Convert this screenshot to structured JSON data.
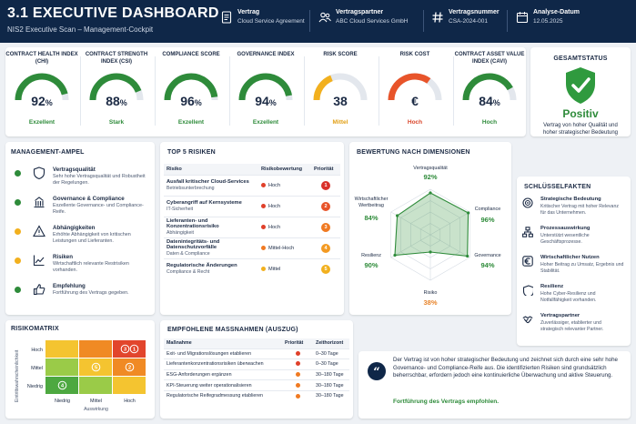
{
  "header": {
    "title": "3.1  EXECUTIVE DASHBOARD",
    "subtitle": "NIS2 Executive Scan – Management-Cockpit",
    "meta": [
      {
        "label": "Vertrag",
        "value": "Cloud Service Agreement",
        "icon": "document-icon"
      },
      {
        "label": "Vertragspartner",
        "value": "ABC Cloud Services GmbH",
        "icon": "users-icon"
      },
      {
        "label": "Vertragsnummer",
        "value": "CSA-2024-001",
        "icon": "hash-icon"
      },
      {
        "label": "Analyse-Datum",
        "value": "12.05.2025",
        "icon": "calendar-icon"
      }
    ]
  },
  "kpis": [
    {
      "title": "CONTRACT HEALTH INDEX (CHI)",
      "value": "92",
      "unit": "%",
      "status": "Exzellent",
      "fill": 0.92,
      "color": "#2e8b3a",
      "status_color": "#2e8b3a"
    },
    {
      "title": "CONTRACT STRENGTH INDEX (CSI)",
      "value": "88",
      "unit": "%",
      "status": "Stark",
      "fill": 0.88,
      "color": "#2e8b3a",
      "status_color": "#2e8b3a"
    },
    {
      "title": "COMPLIANCE SCORE",
      "value": "96",
      "unit": "%",
      "status": "Exzellent",
      "fill": 0.96,
      "color": "#2e8b3a",
      "status_color": "#2e8b3a"
    },
    {
      "title": "GOVERNANCE INDEX",
      "value": "94",
      "unit": "%",
      "status": "Exzellent",
      "fill": 0.94,
      "color": "#2e8b3a",
      "status_color": "#2e8b3a"
    },
    {
      "title": "RISK SCORE",
      "value": "38",
      "unit": "",
      "status": "Mittel",
      "fill": 0.38,
      "color": "#f2b01e",
      "status_color": "#e2a016"
    },
    {
      "title": "RISK COST",
      "value": "€",
      "unit": "",
      "status": "Hoch",
      "fill": 0.7,
      "color": "#e8542a",
      "status_color": "#d9452a"
    },
    {
      "title": "CONTRACT ASSET VALUE INDEX (CAVI)",
      "value": "84",
      "unit": "%",
      "status": "Hoch",
      "fill": 0.84,
      "color": "#2e8b3a",
      "status_color": "#2e8b3a"
    }
  ],
  "gesamtstatus": {
    "title": "GESAMTSTATUS",
    "label": "Positiv",
    "text": "Vertrag von hoher Qualität und hoher strategischer Bedeutung"
  },
  "ampel": {
    "title": "MANAGEMENT-AMPEL",
    "items": [
      {
        "title": "Vertragsqualität",
        "desc": "Sehr hohe Vertragsqualität und Robustheit der Regelungen.",
        "color": "#2e8b3a",
        "icon": "shield-icon"
      },
      {
        "title": "Governance & Compliance",
        "desc": "Exzellente Governance- und Compliance-Reife.",
        "color": "#2e8b3a",
        "icon": "building-icon"
      },
      {
        "title": "Abhängigkeiten",
        "desc": "Erhöhte Abhängigkeit von kritischen Leistungen und Lieferanten.",
        "color": "#f2b01e",
        "icon": "warning-icon"
      },
      {
        "title": "Risiken",
        "desc": "Wirtschaftlich relevante Restrisiken vorhanden.",
        "color": "#f2b01e",
        "icon": "chart-icon"
      },
      {
        "title": "Empfehlung",
        "desc": "Fortführung des Vertrags gegeben.",
        "color": "#2e8b3a",
        "icon": "thumbs-up-icon"
      }
    ]
  },
  "top_risks": {
    "title": "TOP 5 RISIKEN",
    "headers": [
      "Risiko",
      "Risikobewertung",
      "Priorität"
    ],
    "rows": [
      {
        "name": "Ausfall kritischer Cloud-Services",
        "sub": "Betriebsunterbrechung",
        "rating": "Hoch",
        "rating_color": "#e0402a",
        "prio": "1",
        "prio_color": "#d9302a"
      },
      {
        "name": "Cyberangriff auf Kernsysteme",
        "sub": "IT-Sicherheit",
        "rating": "Hoch",
        "rating_color": "#e0402a",
        "prio": "2",
        "prio_color": "#e8542a"
      },
      {
        "name": "Lieferanten- und Konzentrationsrisiko",
        "sub": "Abhängigkeit",
        "rating": "Hoch",
        "rating_color": "#e0402a",
        "prio": "3",
        "prio_color": "#f07a22"
      },
      {
        "name": "Datenintegritäts- und Datenschutzvorfälle",
        "sub": "Daten & Compliance",
        "rating": "Mittel-Hoch",
        "rating_color": "#f07a22",
        "prio": "4",
        "prio_color": "#f39a22"
      },
      {
        "name": "Regulatorische Änderungen",
        "sub": "Compliance & Recht",
        "rating": "Mittel",
        "rating_color": "#f2b01e",
        "prio": "5",
        "prio_color": "#f2b01e"
      }
    ]
  },
  "dimensions": {
    "title": "BEWERTUNG NACH DIMENSIONEN",
    "axes": [
      {
        "label": "Vertragsqualität",
        "value": "92%",
        "v": 92,
        "color": "#2e8b3a"
      },
      {
        "label": "Compliance",
        "value": "96%",
        "v": 96,
        "color": "#2e8b3a"
      },
      {
        "label": "Governance",
        "value": "94%",
        "v": 94,
        "color": "#2e8b3a"
      },
      {
        "label": "Risiko",
        "value": "38%",
        "v": 38,
        "color": "#e8842a"
      },
      {
        "label": "Resilienz",
        "value": "90%",
        "v": 90,
        "color": "#2e8b3a"
      },
      {
        "label": "Wirtschaftlicher Wertbeitrag",
        "value": "84%",
        "v": 84,
        "color": "#2e8b3a"
      }
    ]
  },
  "keyfacts": {
    "title": "SCHLÜSSELFAKTEN",
    "items": [
      {
        "title": "Strategische Bedeutung",
        "desc": "Kritischer Vertrag mit hoher Relevanz für das Unternehmen.",
        "icon": "target-icon"
      },
      {
        "title": "Prozessauswirkung",
        "desc": "Unterstützt wesentliche Geschäftsprozesse.",
        "icon": "flow-icon"
      },
      {
        "title": "Wirtschaftlicher Nutzen",
        "desc": "Hoher Beitrag zu Umsatz, Ergebnis und Stabilität.",
        "icon": "euro-icon"
      },
      {
        "title": "Resilienz",
        "desc": "Hohe Cyber-Resilienz und Notfallfähigkeit vorhanden.",
        "icon": "shield-icon"
      },
      {
        "title": "Vertragspartner",
        "desc": "Zuverlässiger, etablierter und strategisch relevanter Partner.",
        "icon": "handshake-icon"
      }
    ]
  },
  "matrix": {
    "title": "RISIKOMATRIX",
    "ylabel": "Eintrittswahrscheinlichkeit",
    "xlabel": "Auswirkung",
    "rows": [
      "Hoch",
      "Mittel",
      "Niedrig"
    ],
    "cols": [
      "Niedrig",
      "Mittel",
      "Hoch"
    ],
    "markers": [
      {
        "label": "3",
        "row": 0,
        "col": 2
      },
      {
        "label": "1",
        "row": 0,
        "col": 2
      },
      {
        "label": "2",
        "row": 1,
        "col": 2
      },
      {
        "label": "5",
        "row": 1,
        "col": 1
      },
      {
        "label": "4",
        "row": 2,
        "col": 0
      }
    ]
  },
  "massnahmen": {
    "title": "EMPFOHLENE MASSNAHMEN (AUSZUG)",
    "headers": [
      "Maßnahme",
      "Priorität",
      "Zeithorizont"
    ],
    "rows": [
      {
        "name": "Exit- und Migrationslösungen etablieren",
        "color": "#e0402a",
        "time": "0–30 Tage"
      },
      {
        "name": "Lieferantenkonzentrationsrisiken überwachen",
        "color": "#e0402a",
        "time": "0–30 Tage"
      },
      {
        "name": "ESG-Anforderungen ergänzen",
        "color": "#f07a22",
        "time": "30–180 Tage"
      },
      {
        "name": "KPI-Steuerung weiter operationalisieren",
        "color": "#f07a22",
        "time": "30–180 Tage"
      },
      {
        "name": "Regulatorische Reifegradmessung etablieren",
        "color": "#f07a22",
        "time": "30–180 Tage"
      }
    ]
  },
  "summary": {
    "text": "Der Vertrag ist von hoher strategischer Bedeutung und zeichnet sich durch eine sehr hohe Governance- und Compliance-Reife aus. Die identifizierten Risiken sind grundsätzlich beherrschbar, erfordern jedoch eine kontinuierliche Überwachung und aktive Steuerung.",
    "conclusion": "Fortführung des Vertrags empfohlen."
  }
}
